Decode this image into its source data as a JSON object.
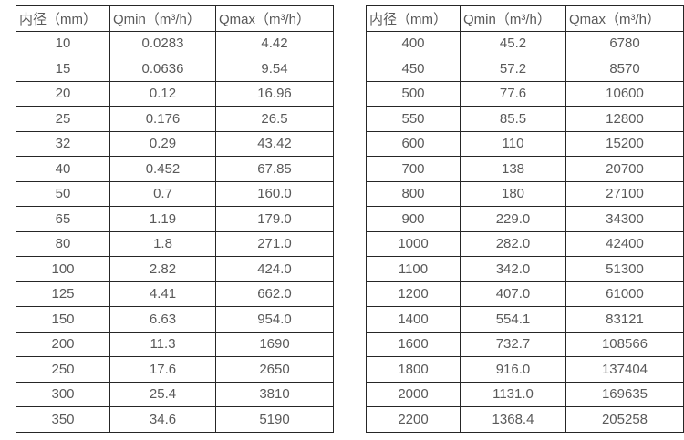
{
  "colors": {
    "background": "#ffffff",
    "border": "#262626",
    "text": "#595959"
  },
  "chart_data": [
    {
      "type": "table",
      "name": "small-diameters",
      "columns": [
        "内径（mm）",
        "Qmin（m³/h）",
        "Qmax（m³/h）"
      ],
      "rows": [
        [
          "10",
          "0.0283",
          "4.42"
        ],
        [
          "15",
          "0.0636",
          "9.54"
        ],
        [
          "20",
          "0.12",
          "16.96"
        ],
        [
          "25",
          "0.176",
          "26.5"
        ],
        [
          "32",
          "0.29",
          "43.42"
        ],
        [
          "40",
          "0.452",
          "67.85"
        ],
        [
          "50",
          "0.7",
          "160.0"
        ],
        [
          "65",
          "1.19",
          "179.0"
        ],
        [
          "80",
          "1.8",
          "271.0"
        ],
        [
          "100",
          "2.82",
          "424.0"
        ],
        [
          "125",
          "4.41",
          "662.0"
        ],
        [
          "150",
          "6.63",
          "954.0"
        ],
        [
          "200",
          "11.3",
          "1690"
        ],
        [
          "250",
          "17.6",
          "2650"
        ],
        [
          "300",
          "25.4",
          "3810"
        ],
        [
          "350",
          "34.6",
          "5190"
        ]
      ]
    },
    {
      "type": "table",
      "name": "large-diameters",
      "columns": [
        "内径（mm）",
        "Qmin（m³/h）",
        "Qmax（m³/h）"
      ],
      "rows": [
        [
          "400",
          "45.2",
          "6780"
        ],
        [
          "450",
          "57.2",
          "8570"
        ],
        [
          "500",
          "77.6",
          "10600"
        ],
        [
          "550",
          "85.5",
          "12800"
        ],
        [
          "600",
          "110",
          "15200"
        ],
        [
          "700",
          "138",
          "20700"
        ],
        [
          "800",
          "180",
          "27100"
        ],
        [
          "900",
          "229.0",
          "34300"
        ],
        [
          "1000",
          "282.0",
          "42400"
        ],
        [
          "1100",
          "342.0",
          "51300"
        ],
        [
          "1200",
          "407.0",
          "61000"
        ],
        [
          "1400",
          "554.1",
          "83121"
        ],
        [
          "1600",
          "732.7",
          "108566"
        ],
        [
          "1800",
          "916.0",
          "137404"
        ],
        [
          "2000",
          "1131.0",
          "169635"
        ],
        [
          "2200",
          "1368.4",
          "205258"
        ]
      ]
    }
  ]
}
